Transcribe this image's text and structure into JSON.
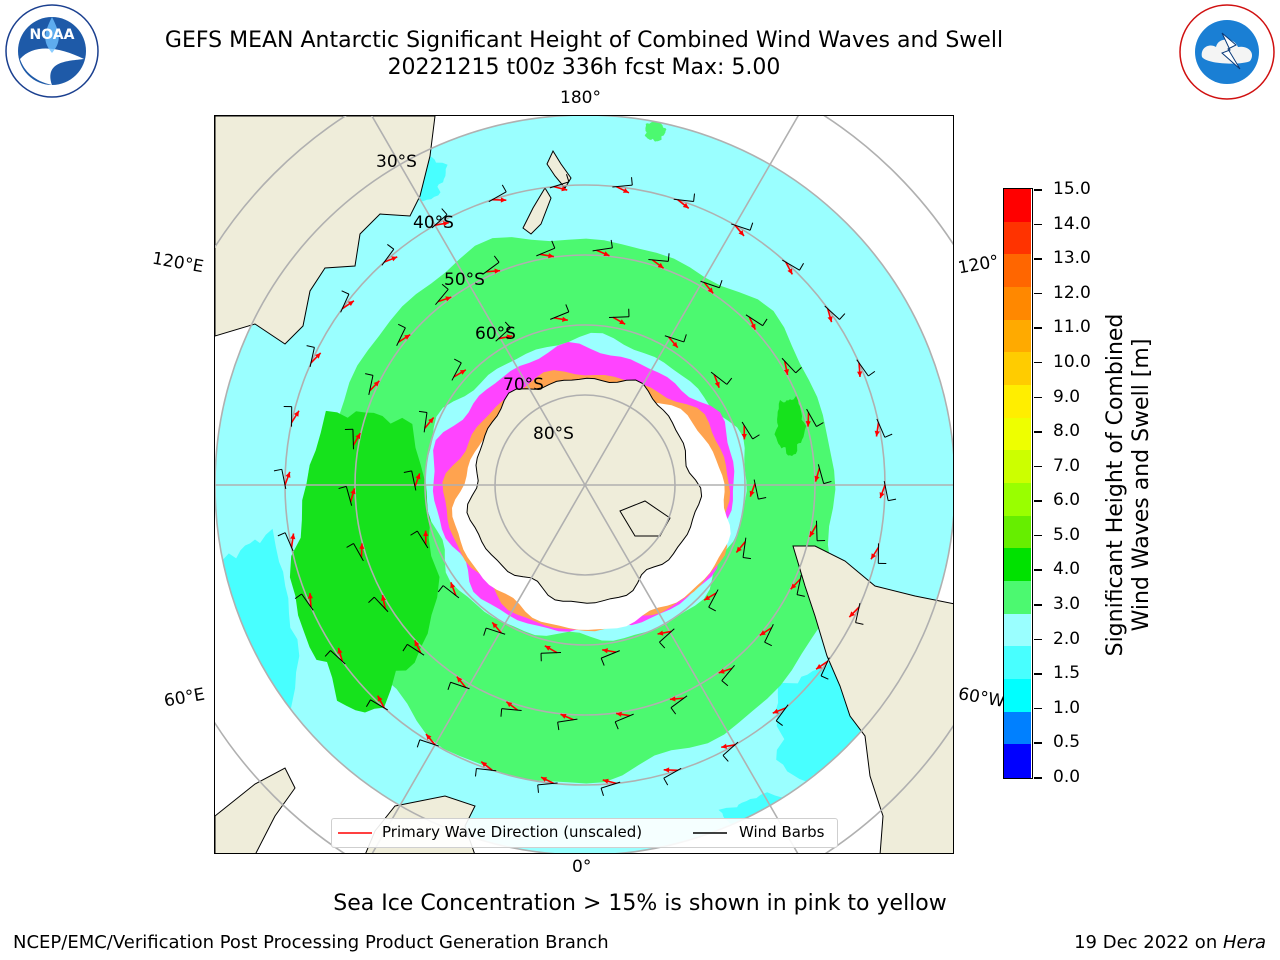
{
  "header": {
    "title_line1": "GEFS MEAN Antarctic Significant Height of Combined Wind Waves and Swell",
    "title_line2": "20221215 t00z 336h fcst   Max: 5.00"
  },
  "logos": {
    "noaa_text": "NOAA",
    "noaa_ring_text": "NATIONAL OCEANIC AND ATMOSPHERIC ADMINISTRATION · U.S. DEPARTMENT OF COMMERCE",
    "nws_ring_text": "NATIONAL WEATHER SERVICE"
  },
  "map": {
    "projection": "south-polar-stereographic",
    "longitude_labels": {
      "top": "180°",
      "bottom": "0°",
      "left_upper": "120°E",
      "left_lower": "60°E",
      "right_upper": "120°",
      "right_lower": "60°W"
    },
    "latitude_labels": [
      "30°S",
      "40°S",
      "50°S",
      "60°S",
      "70°S",
      "80°S"
    ],
    "colors": {
      "land": "#efedda",
      "ocean_bg": "#9affff",
      "band_green": "#4cf970",
      "band_darkgreen": "#16e21c",
      "ocean_cyan": "#48ffff",
      "ice_pink": "#ff44ff",
      "ice_orange": "#ffa34f",
      "ice_white": "#ffffff",
      "arrow": "#ff0000",
      "barb": "#000000",
      "grid": "#b0b0b0"
    }
  },
  "colorbar": {
    "label_line1": "Significant Height of Combined",
    "label_line2": "Wind Waves and Swell [m]",
    "ticks": [
      "15.0",
      "14.0",
      "13.0",
      "12.0",
      "11.0",
      "10.0",
      "9.0",
      "8.0",
      "7.0",
      "6.0",
      "5.0",
      "4.0",
      "3.0",
      "2.0",
      "1.5",
      "1.0",
      "0.5",
      "0.0"
    ],
    "colors_top_to_bottom": [
      "#ff0000",
      "#ff3300",
      "#ff6600",
      "#ff8800",
      "#ffaa00",
      "#ffcc00",
      "#ffee00",
      "#eeff00",
      "#ccff00",
      "#99ff00",
      "#66ee00",
      "#00e200",
      "#4cf970",
      "#9affff",
      "#48ffff",
      "#00ffff",
      "#0080ff",
      "#0000ff"
    ]
  },
  "legend": {
    "wave_label": "Primary Wave Direction (unscaled)",
    "barb_label": "Wind Barbs"
  },
  "footer": {
    "subtitle": "Sea Ice Concentration > 15% is shown in pink to yellow",
    "left": "NCEP/EMC/Verification Post Processing Product Generation Branch",
    "right_prefix": "19 Dec 2022 on ",
    "right_machine": "Hera"
  }
}
